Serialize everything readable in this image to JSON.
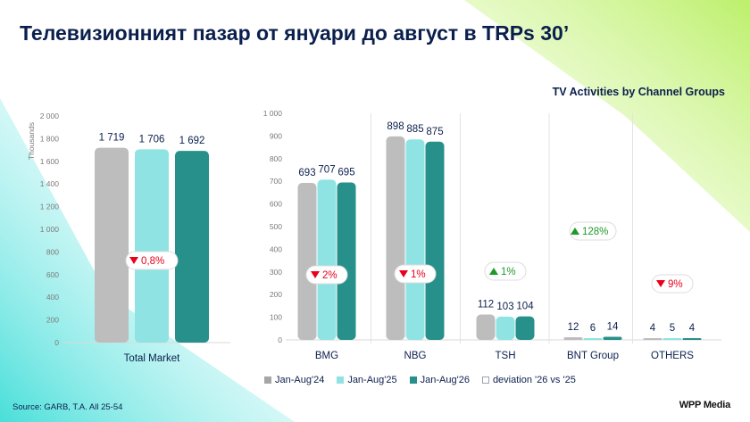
{
  "title": "Телевизионният пазар от януари до август в TRPs 30’",
  "subtitle": "TV Activities by Channel Groups",
  "source": "Source: GARB, T.A. All 25-54",
  "brand": "WPP Media",
  "colors": {
    "jan_aug_24": "#bdbdbd",
    "jan_aug_25": "#8fe3e3",
    "jan_aug_26": "#27908a",
    "value_label": "#0b1f4d",
    "down": "#e8001c",
    "up": "#1e9a2c",
    "axis_text": "#7a7a7a"
  },
  "legend": [
    {
      "label": "Jan-Aug'24",
      "color": "#a6a6a6",
      "style": "solid"
    },
    {
      "label": "Jan-Aug'25",
      "color": "#8fe3e3",
      "style": "solid"
    },
    {
      "label": "Jan-Aug'26",
      "color": "#27908a",
      "style": "solid"
    },
    {
      "label": "deviation '26 vs '25",
      "color": "#ffffff",
      "style": "hollow"
    }
  ],
  "chart_data": [
    {
      "type": "bar",
      "ylabel": "Thousands",
      "ylim": [
        0,
        2000
      ],
      "yticks": [
        "2 000",
        "1 800",
        "1 600",
        "1 400",
        "1 200",
        "1 000",
        "800",
        "600",
        "400",
        "200",
        "0"
      ],
      "categories": [
        "Total Market"
      ],
      "series": [
        {
          "name": "Jan-Aug'24",
          "values": [
            1719
          ],
          "labels": [
            "1 719"
          ]
        },
        {
          "name": "Jan-Aug'25",
          "values": [
            1706
          ],
          "labels": [
            "1 706"
          ]
        },
        {
          "name": "Jan-Aug'26",
          "values": [
            1692
          ],
          "labels": [
            "1 692"
          ]
        }
      ],
      "deviations": [
        {
          "text": "0,8%",
          "direction": "down"
        }
      ]
    },
    {
      "type": "bar",
      "ylim": [
        0,
        1000
      ],
      "yticks": [
        "1 000",
        "900",
        "800",
        "700",
        "600",
        "500",
        "400",
        "300",
        "200",
        "100",
        "0"
      ],
      "categories": [
        "BMG",
        "NBG",
        "TSH",
        "BNT Group",
        "OTHERS"
      ],
      "series": [
        {
          "name": "Jan-Aug'24",
          "values": [
            693,
            898,
            112,
            12,
            4
          ],
          "labels": [
            "693",
            "898",
            "112",
            "12",
            "4"
          ]
        },
        {
          "name": "Jan-Aug'25",
          "values": [
            707,
            885,
            103,
            6,
            5
          ],
          "labels": [
            "707",
            "885",
            "103",
            "6",
            "5"
          ]
        },
        {
          "name": "Jan-Aug'26",
          "values": [
            695,
            875,
            104,
            14,
            4
          ],
          "labels": [
            "695",
            "875",
            "104",
            "14",
            "4"
          ]
        }
      ],
      "deviations": [
        {
          "text": "2%",
          "direction": "down"
        },
        {
          "text": "1%",
          "direction": "down"
        },
        {
          "text": "1%",
          "direction": "up"
        },
        {
          "text": "128%",
          "direction": "up"
        },
        {
          "text": "9%",
          "direction": "down"
        }
      ]
    }
  ]
}
